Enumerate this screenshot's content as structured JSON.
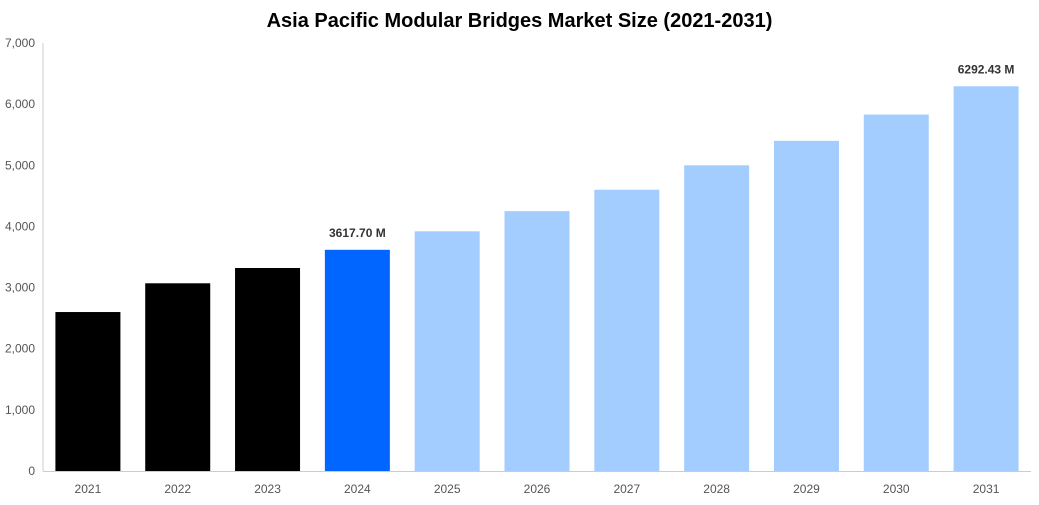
{
  "chart_data": {
    "type": "bar",
    "title": "Asia Pacific Modular Bridges Market Size (2021-2031)",
    "xlabel": "",
    "ylabel": "",
    "categories": [
      "2021",
      "2022",
      "2023",
      "2024",
      "2025",
      "2026",
      "2027",
      "2028",
      "2029",
      "2030",
      "2031"
    ],
    "values": [
      2600,
      3070,
      3320,
      3617.7,
      3920,
      4250,
      4600,
      5000,
      5400,
      5830,
      6292.43
    ],
    "bar_colors": [
      "#000000",
      "#000000",
      "#000000",
      "#0066ff",
      "#a3cdfe",
      "#a3cdfe",
      "#a3cdfe",
      "#a3cdfe",
      "#a3cdfe",
      "#a3cdfe",
      "#a3cdfe"
    ],
    "ylim": [
      0,
      7000
    ],
    "yticks": [
      0,
      1000,
      2000,
      3000,
      4000,
      5000,
      6000,
      7000
    ],
    "ytick_labels": [
      "0",
      "1,000",
      "2,000",
      "3,000",
      "4,000",
      "5,000",
      "6,000",
      "7,000"
    ],
    "data_labels": [
      {
        "category": "2024",
        "text": "3617.70 M"
      },
      {
        "category": "2031",
        "text": "6292.43 M"
      }
    ],
    "grid": false,
    "legend": "none"
  },
  "colors": {
    "historical": "#000000",
    "base_year": "#0066ff",
    "forecast": "#a3cdfe"
  }
}
